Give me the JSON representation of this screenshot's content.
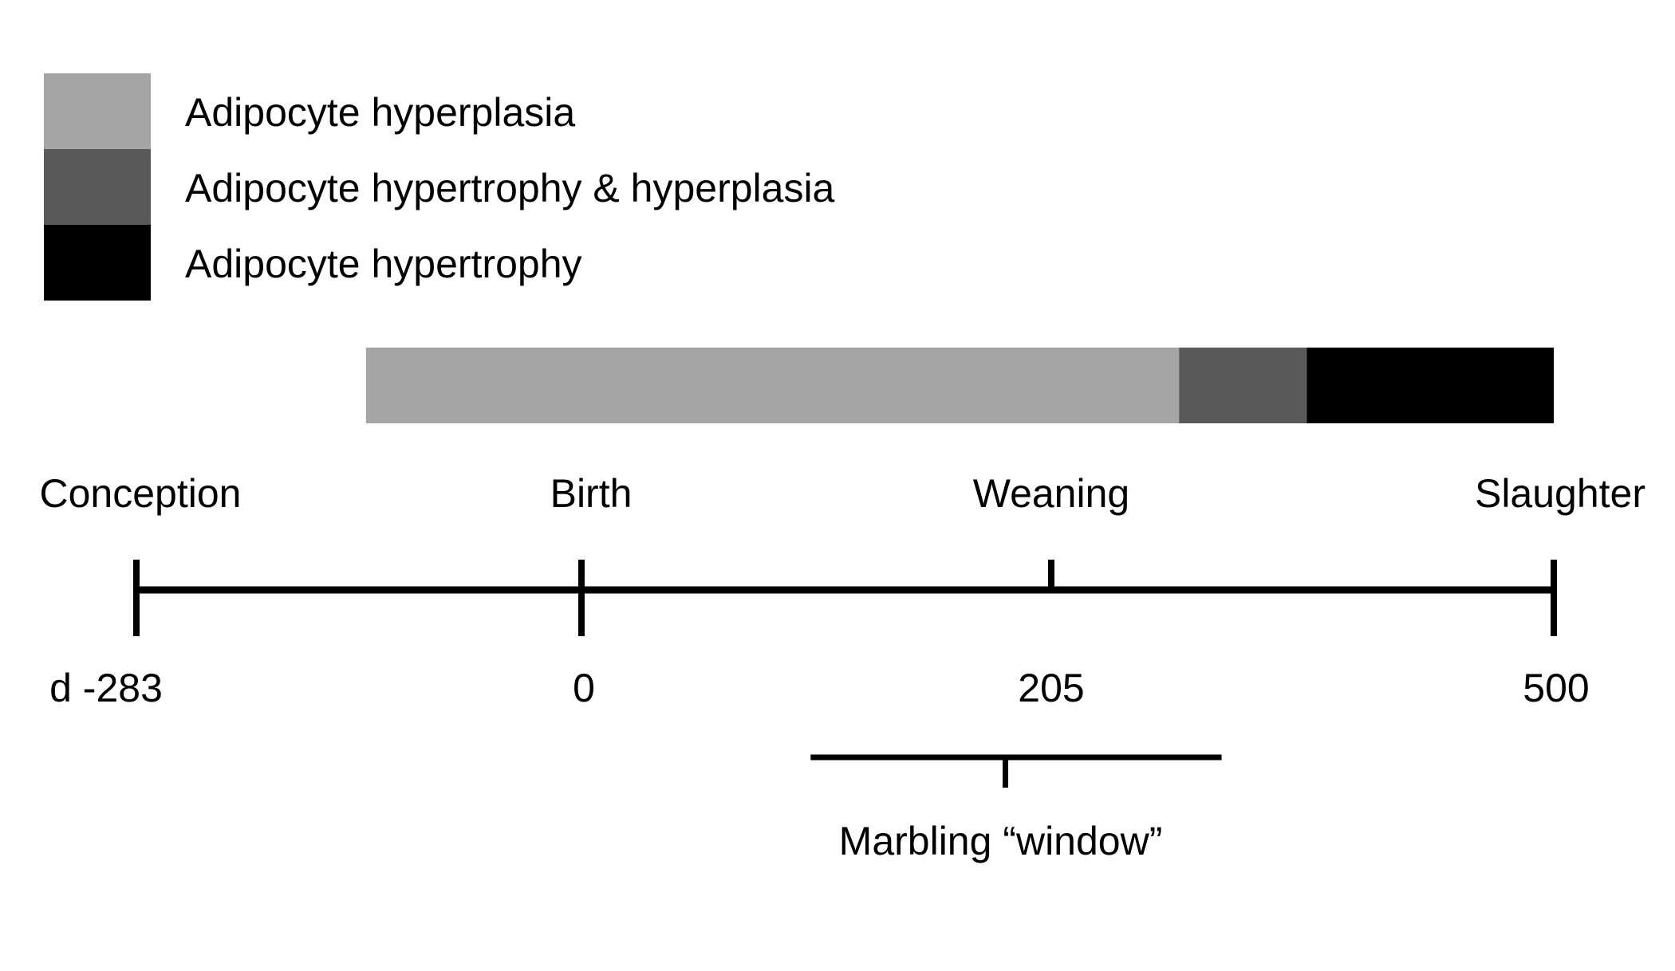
{
  "legend": [
    {
      "key": "hyperplasia",
      "label": "Adipocyte hyperplasia",
      "color": "#a5a5a5"
    },
    {
      "key": "both",
      "label": "Adipocyte hypertrophy & hyperplasia",
      "color": "#595959"
    },
    {
      "key": "hypertrophy",
      "label": "Adipocyte hypertrophy",
      "color": "#000000"
    }
  ],
  "phase_bar": [
    {
      "key": "hyperplasia",
      "start_day": -137,
      "end_day": 280,
      "color": "#a5a5a5"
    },
    {
      "key": "both",
      "start_day": 280,
      "end_day": 355,
      "color": "#595959"
    },
    {
      "key": "hypertrophy",
      "start_day": 355,
      "end_day": 500,
      "color": "#000000"
    }
  ],
  "timeline": {
    "points": [
      {
        "key": "conception",
        "event": "Conception",
        "day": -283,
        "day_label": "d -283"
      },
      {
        "key": "birth",
        "event": "Birth",
        "day": 0,
        "day_label": "0"
      },
      {
        "key": "weaning",
        "event": "Weaning",
        "day": 205,
        "day_label": "205"
      },
      {
        "key": "slaughter",
        "event": "Slaughter",
        "day": 500,
        "day_label": "500"
      }
    ]
  },
  "marbling_window": {
    "label": "Marbling “window”",
    "start_day": 100,
    "end_day": 305,
    "center_day": 185
  }
}
